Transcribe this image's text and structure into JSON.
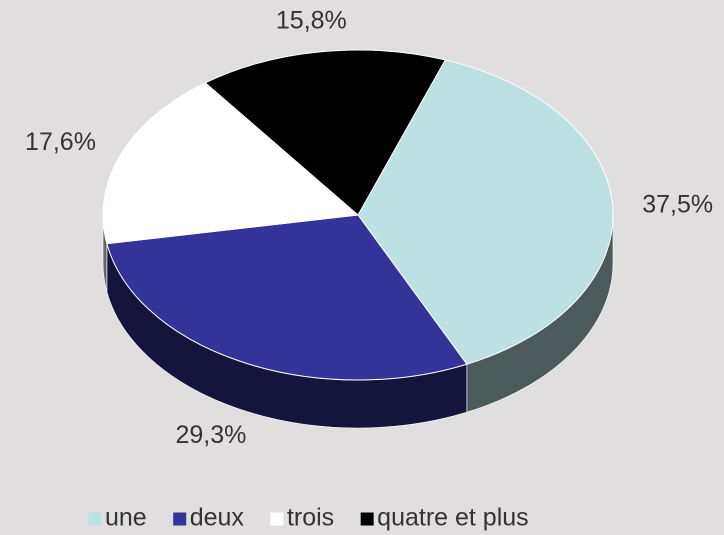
{
  "chart_data": {
    "type": "pie",
    "categories": [
      "une",
      "deux",
      "trois",
      "quatre et plus"
    ],
    "values": [
      37.5,
      29.3,
      17.6,
      15.8
    ],
    "value_labels": [
      "37,5%",
      "29,3%",
      "17,6%",
      "15,8%"
    ],
    "colors": [
      "#bde0e3",
      "#333399",
      "#ffffff",
      "#000000"
    ],
    "legend": "bottom"
  }
}
